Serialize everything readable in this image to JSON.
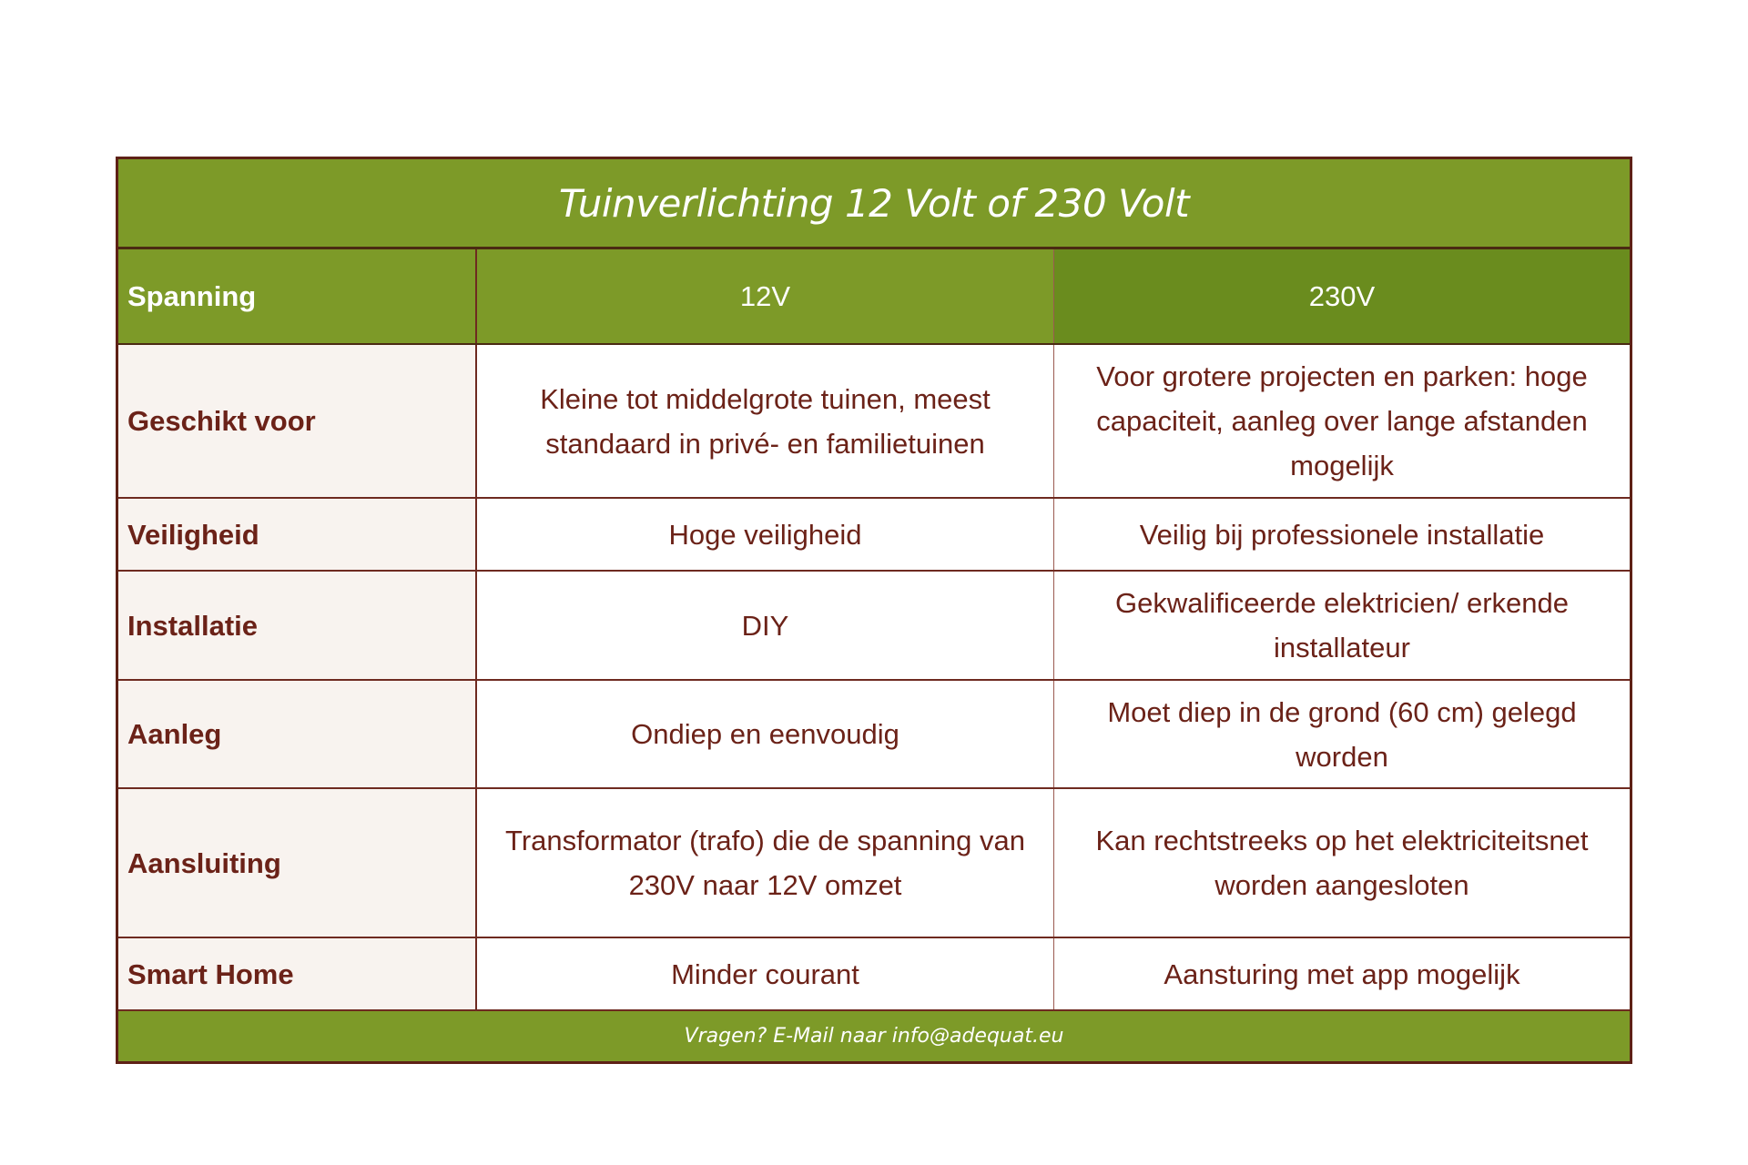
{
  "title": "Tuinverlichting 12 Volt of 230 Volt",
  "header": {
    "label": "Spanning",
    "col1": "12V",
    "col2": "230V"
  },
  "rows": [
    {
      "label": "Geschikt voor",
      "v12": "Kleine tot middelgrote tuinen, meest standaard in privé- en familietuinen",
      "v230": "Voor grotere projecten en parken: hoge capaciteit, aanleg over lange afstanden mogelijk"
    },
    {
      "label": "Veiligheid",
      "v12": "Hoge veiligheid",
      "v230": "Veilig bij professionele installatie"
    },
    {
      "label": "Installatie",
      "v12": "DIY",
      "v230": "Gekwalificeerde elektricien/ erkende installateur"
    },
    {
      "label": "Aanleg",
      "v12": "Ondiep en eenvoudig",
      "v230": "Moet diep in de grond (60 cm) gelegd worden"
    },
    {
      "label": "Aansluiting",
      "v12": "Transformator (trafo) die de spanning van 230V naar 12V omzet",
      "v230": "Kan rechtstreeks op het elektriciteitsnet worden aangesloten"
    },
    {
      "label": "Smart Home",
      "v12": "Minder courant",
      "v230": "Aansturing met app mogelijk"
    }
  ],
  "footer": "Vragen? E-Mail naar info@adequat.eu",
  "colors": {
    "green": "#7d9a28",
    "green_dark": "#6a8c1e",
    "text": "#6b2218",
    "border": "#5e2116",
    "label_bg": "#f8f3ef"
  }
}
